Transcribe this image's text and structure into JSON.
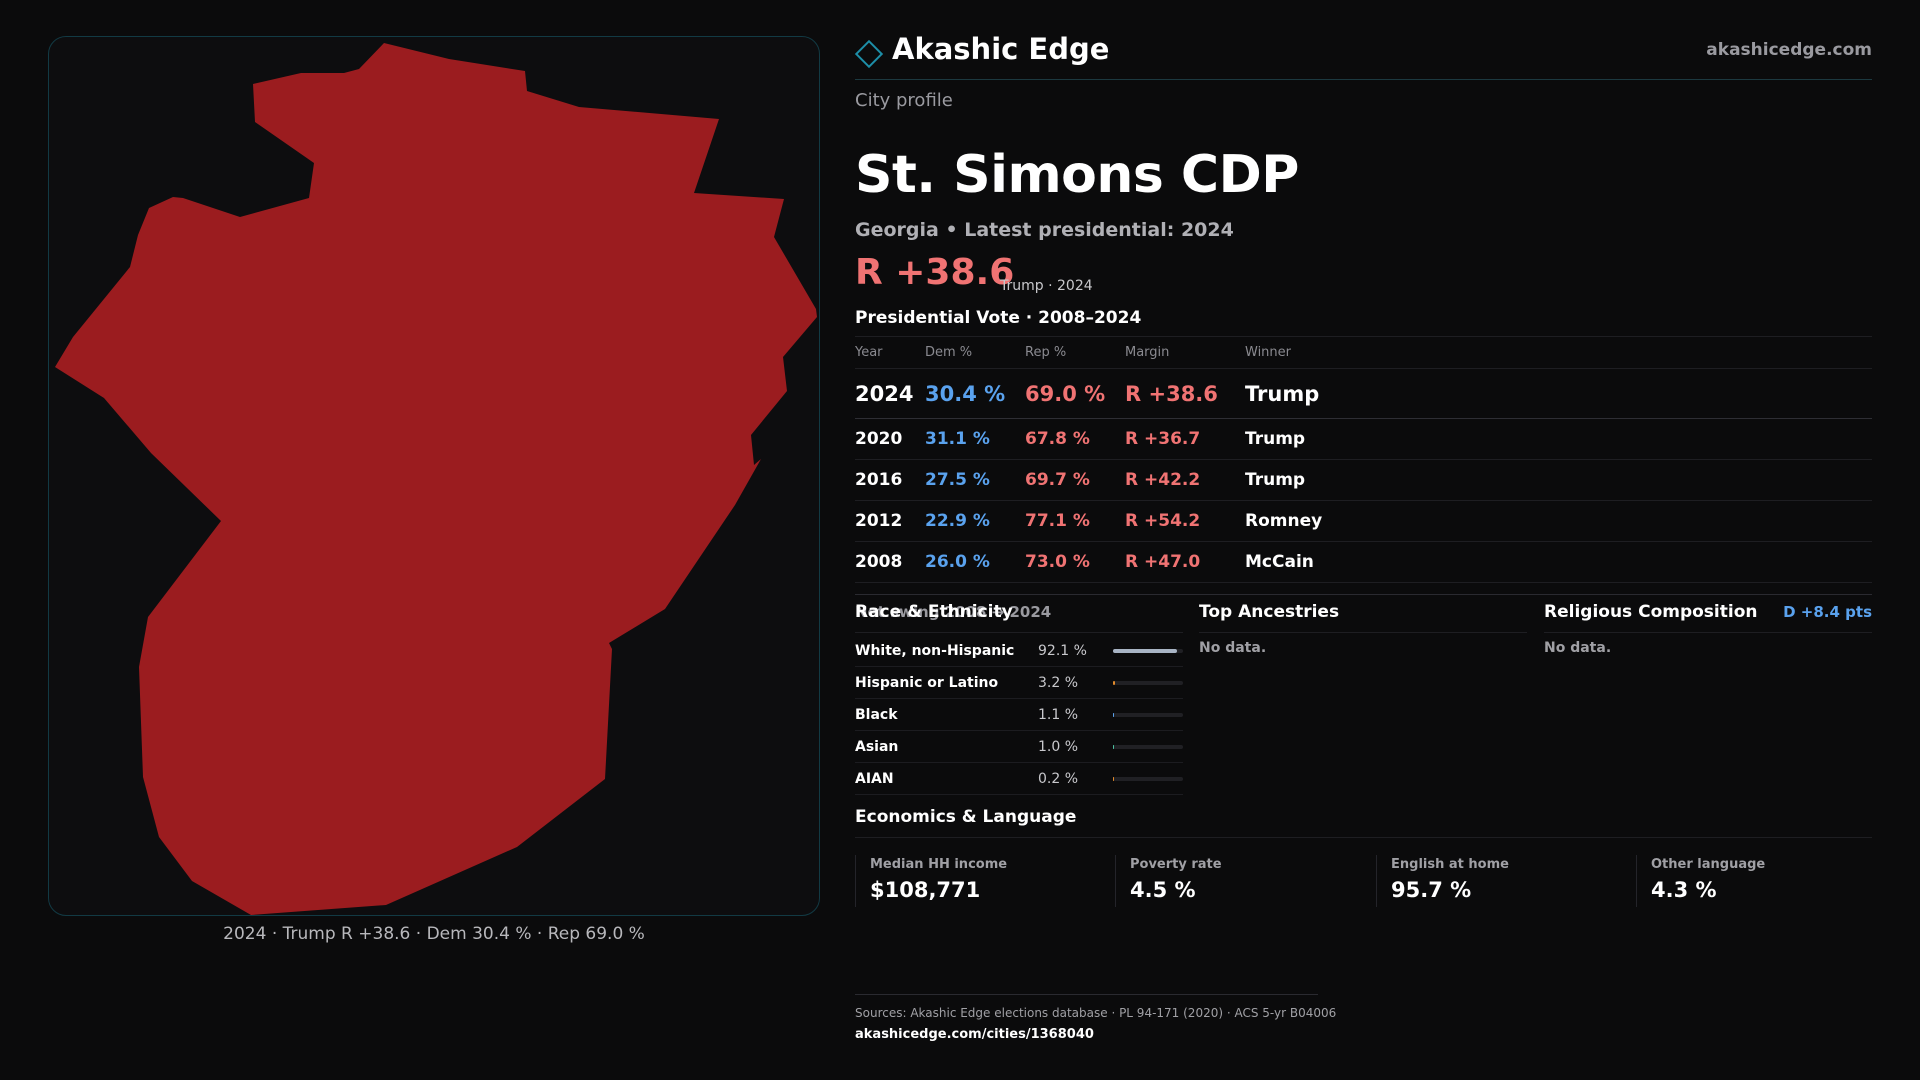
{
  "brand": {
    "name": "Akashic Edge",
    "site": "akashicedge.com"
  },
  "profile": {
    "eyebrow": "City profile",
    "title": "St. Simons CDP",
    "subtitle": "Georgia • Latest presidential: 2024",
    "headline_margin": "R +38.6",
    "headline_note": "Trump · 2024"
  },
  "map": {
    "caption": "2024 · Trump R +38.6 · Dem 30.4 % · Rep 69.0 %",
    "fill_color": "#9b1c1f"
  },
  "votes": {
    "title": "Presidential Vote · 2008–2024",
    "columns": [
      "Year",
      "Dem %",
      "Rep %",
      "Margin",
      "Winner"
    ],
    "rows": [
      {
        "year": "2024",
        "dem": "30.4 %",
        "rep": "69.0 %",
        "margin": "R +38.6",
        "winner": "Trump"
      },
      {
        "year": "2020",
        "dem": "31.1 %",
        "rep": "67.8 %",
        "margin": "R +36.7",
        "winner": "Trump"
      },
      {
        "year": "2016",
        "dem": "27.5 %",
        "rep": "69.7 %",
        "margin": "R +42.2",
        "winner": "Trump"
      },
      {
        "year": "2012",
        "dem": "22.9 %",
        "rep": "77.1 %",
        "margin": "R +54.2",
        "winner": "Romney"
      },
      {
        "year": "2008",
        "dem": "26.0 %",
        "rep": "73.0 %",
        "margin": "R +47.0",
        "winner": "McCain"
      }
    ],
    "swing_label": "Net swing 2008 → 2024",
    "swing_value": "D +8.4 pts"
  },
  "race": {
    "title": "Race & Ethnicity",
    "rows": [
      {
        "label": "White, non-Hispanic",
        "pct": "92.1 %",
        "value": 92.1,
        "color": "#a8b4c4"
      },
      {
        "label": "Hispanic or Latino",
        "pct": "3.2 %",
        "value": 3.2,
        "color": "#e08a2c"
      },
      {
        "label": "Black",
        "pct": "1.1 %",
        "value": 1.1,
        "color": "#5aa2ee"
      },
      {
        "label": "Asian",
        "pct": "1.0 %",
        "value": 1.0,
        "color": "#4cc0a0"
      },
      {
        "label": "AIAN",
        "pct": "0.2 %",
        "value": 0.2,
        "color": "#e08a2c"
      }
    ]
  },
  "ancestries": {
    "title": "Top Ancestries",
    "empty": "No data."
  },
  "religion": {
    "title": "Religious Composition",
    "empty": "No data."
  },
  "economics": {
    "title": "Economics & Language",
    "cells": [
      {
        "label": "Median HH income",
        "value": "$108,771"
      },
      {
        "label": "Poverty rate",
        "value": "4.5 %"
      },
      {
        "label": "English at home",
        "value": "95.7 %"
      },
      {
        "label": "Other language",
        "value": "4.3 %"
      }
    ]
  },
  "footer": {
    "sources": "Sources: Akashic Edge elections database · PL 94-171 (2020) · ACS 5-yr B04006",
    "permalink": "akashicedge.com/cities/1368040"
  }
}
